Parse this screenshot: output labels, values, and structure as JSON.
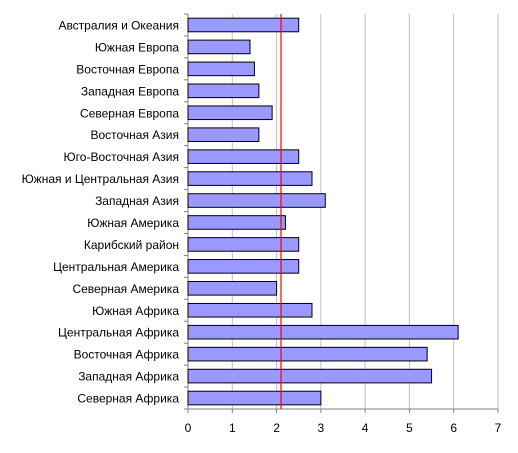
{
  "chart_data": {
    "type": "bar",
    "orientation": "horizontal",
    "categories": [
      "Австралия и Океания",
      "Южная Европа",
      "Восточная Европа",
      "Западная Европа",
      "Северная Европа",
      "Восточная Азия",
      "Юго-Восточная Азия",
      "Южная и Центральная Азия",
      "Западная Азия",
      "Южная Америка",
      "Карибский район",
      "Центральная Америка",
      "Северная Америка",
      "Южная Африка",
      "Центральная Африка",
      "Восточная Африка",
      "Западная Африка",
      "Северная Африка"
    ],
    "values": [
      2.5,
      1.4,
      1.5,
      1.6,
      1.9,
      1.6,
      2.5,
      2.8,
      3.1,
      2.2,
      2.5,
      2.5,
      2.0,
      2.8,
      6.1,
      5.4,
      5.5,
      3.0
    ],
    "x_ticks": [
      "0",
      "1",
      "2",
      "3",
      "4",
      "5",
      "6",
      "7"
    ],
    "xlim": [
      0,
      7
    ],
    "reference_line": 2.1,
    "grid": true,
    "colors": {
      "bar_fill": "#9999ff",
      "bar_stroke": "#000000",
      "grid": "#c0c0c0",
      "axis": "#808080",
      "reference_line": "#ff0000"
    }
  }
}
